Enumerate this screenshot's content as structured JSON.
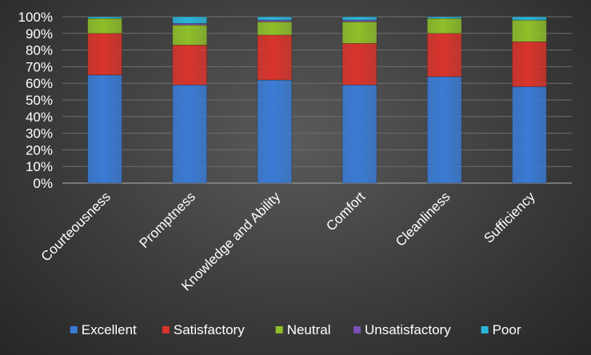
{
  "chart_data": {
    "type": "bar",
    "stacked": true,
    "categories": [
      "Courteousness",
      "Promptness",
      "Knowledge and Ability",
      "Comfort",
      "Cleanliness",
      "Sufficiency"
    ],
    "series": [
      {
        "name": "Excellent",
        "color": "#3a7bd5",
        "values": [
          65,
          59,
          62,
          59,
          64,
          58
        ]
      },
      {
        "name": "Satisfactory",
        "color": "#d9342b",
        "values": [
          25,
          24,
          27,
          25,
          26,
          27
        ]
      },
      {
        "name": "Neutral",
        "color": "#8fbf2a",
        "values": [
          9,
          12,
          8,
          13,
          9,
          13
        ]
      },
      {
        "name": "Unsatisfactory",
        "color": "#7b4fb5",
        "values": [
          0,
          1,
          1,
          1,
          0,
          0
        ]
      },
      {
        "name": "Poor",
        "color": "#2bb5d9",
        "values": [
          1,
          4,
          2,
          2,
          1,
          2
        ]
      }
    ],
    "ylim": [
      0,
      100
    ],
    "yticks": [
      "0%",
      "10%",
      "20%",
      "30%",
      "40%",
      "50%",
      "60%",
      "70%",
      "80%",
      "90%",
      "100%"
    ],
    "grid": true,
    "legend_position": "bottom"
  }
}
